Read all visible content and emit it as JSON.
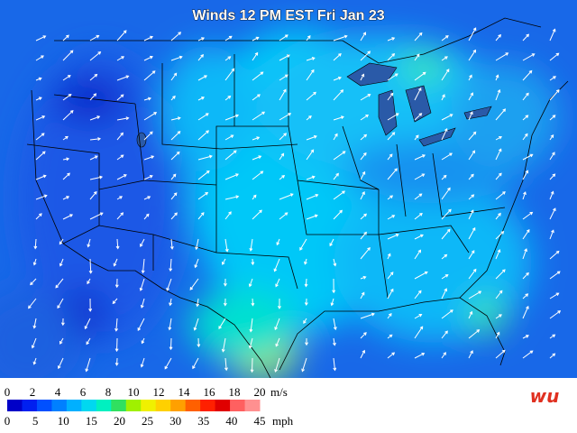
{
  "title": "Winds 12 PM EST Fri Jan 23",
  "legend": {
    "ms_labels": [
      0,
      2,
      4,
      6,
      8,
      10,
      12,
      14,
      16,
      18,
      20
    ],
    "ms_unit": "m/s",
    "mph_labels": [
      0,
      5,
      10,
      15,
      20,
      25,
      30,
      35,
      40,
      45
    ],
    "mph_unit": "mph",
    "colors": [
      "#0000c8",
      "#0020f0",
      "#0050ff",
      "#0080ff",
      "#00b0ff",
      "#00d8f0",
      "#00f0c0",
      "#30e060",
      "#a0f000",
      "#f0f000",
      "#ffd000",
      "#ffa000",
      "#ff6000",
      "#ff2000",
      "#e00000",
      "#ff6060",
      "#ff9090"
    ]
  },
  "logo": {
    "text": "wu"
  }
}
